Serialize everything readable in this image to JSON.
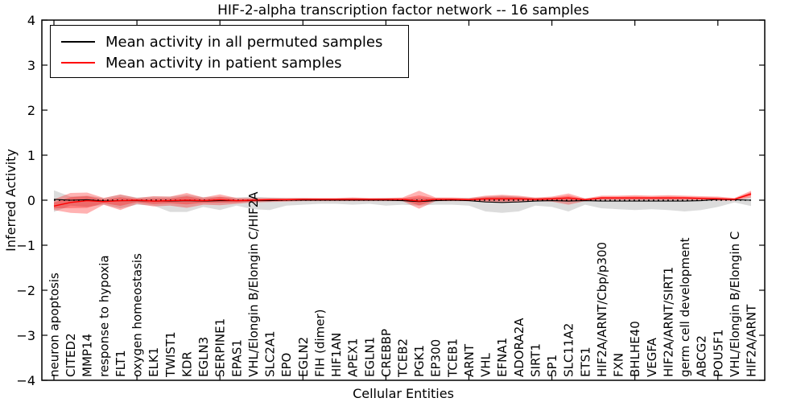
{
  "title": "HIF-2-alpha transcription factor network -- 16 samples",
  "legend": {
    "items": [
      {
        "label": "Mean activity in all permuted samples",
        "color": "#000000"
      },
      {
        "label": "Mean activity in patient samples",
        "color": "#ff0000"
      }
    ]
  },
  "colors": {
    "permuted_line": "#000000",
    "patient_line": "#ff0000",
    "permuted_band_gray": "#d9d9d9",
    "patient_band_pink": "#f4a0a0",
    "background": "#ffffff"
  },
  "chart_data": {
    "type": "line",
    "title": "HIF-2-alpha transcription factor network -- 16 samples",
    "xlabel": "Cellular Entities",
    "ylabel": "Inferred Activity",
    "ylim": [
      -4,
      4
    ],
    "grid": false,
    "legend_position": "upper left",
    "yticks": [
      "4",
      "3",
      "2",
      "1",
      "0",
      "−1",
      "−2",
      "−3",
      "−4"
    ],
    "categories": [
      "neuron apoptosis",
      "CITED2",
      "MMP14",
      "response to hypoxia",
      "FLT1",
      "oxygen homeostasis",
      "ELK1",
      "TWIST1",
      "KDR",
      "EGLN3",
      "SERPINE1",
      "EPAS1",
      "VHL/Elongin B/Elongin C/HIF2A",
      "SLC2A1",
      "EPO",
      "EGLN2",
      "FIH (dimer)",
      "HIF1AN",
      "APEX1",
      "EGLN1",
      "CREBBP",
      "TCEB2",
      "PGK1",
      "EP300",
      "TCEB1",
      "ARNT",
      "VHL",
      "EFNA1",
      "ADORA2A",
      "SIRT1",
      "SP1",
      "SLC11A2",
      "ETS1",
      "HIF2A/ARNT/Cbp/p300",
      "FXN",
      "BHLHE40",
      "VEGFA",
      "HIF2A/ARNT/SIRT1",
      "germ cell development",
      "ABCG2",
      "POU5F1",
      "VHL/Elongin B/Elongin C",
      "HIF2A/ARNT"
    ],
    "series": [
      {
        "name": "Mean activity in all permuted samples",
        "color": "#000000",
        "values": [
          0.02,
          0.0,
          0.01,
          -0.02,
          -0.01,
          -0.01,
          -0.02,
          -0.02,
          -0.01,
          -0.02,
          -0.01,
          -0.01,
          -0.01,
          -0.01,
          0.0,
          0.0,
          0.0,
          0.0,
          0.0,
          0.0,
          0.0,
          -0.01,
          -0.03,
          -0.01,
          0.0,
          -0.01,
          -0.04,
          -0.05,
          -0.04,
          -0.02,
          -0.01,
          -0.02,
          -0.01,
          -0.02,
          -0.02,
          -0.02,
          -0.02,
          -0.02,
          -0.02,
          -0.01,
          0.02,
          0.01,
          0.0
        ]
      },
      {
        "name": "Mean activity in patient samples",
        "color": "#ff0000",
        "values": [
          -0.13,
          -0.05,
          -0.01,
          -0.03,
          -0.01,
          0.0,
          -0.02,
          -0.01,
          0.0,
          -0.01,
          0.01,
          -0.01,
          0.0,
          0.01,
          0.01,
          0.02,
          0.02,
          0.02,
          0.02,
          0.02,
          0.02,
          0.02,
          -0.02,
          0.02,
          0.02,
          0.01,
          0.03,
          0.03,
          0.03,
          0.02,
          0.03,
          0.05,
          0.01,
          0.05,
          0.05,
          0.05,
          0.05,
          0.05,
          0.05,
          0.04,
          0.03,
          0.02,
          0.14
        ]
      }
    ],
    "bands": [
      {
        "name": "permuted-samples-std-band",
        "color": "#808080",
        "upper": [
          0.22,
          0.08,
          0.1,
          0.05,
          0.12,
          0.06,
          0.08,
          0.08,
          0.12,
          0.07,
          0.08,
          0.06,
          0.08,
          0.06,
          0.05,
          0.05,
          0.04,
          0.04,
          0.05,
          0.04,
          0.05,
          0.04,
          0.06,
          0.05,
          0.04,
          0.05,
          0.08,
          0.1,
          0.08,
          0.05,
          0.06,
          0.06,
          0.04,
          0.05,
          0.04,
          0.05,
          0.04,
          0.05,
          0.03,
          0.04,
          0.05,
          0.02,
          0.08
        ],
        "lower": [
          -0.26,
          -0.12,
          -0.15,
          -0.1,
          -0.18,
          -0.1,
          -0.12,
          -0.26,
          -0.26,
          -0.15,
          -0.22,
          -0.12,
          -0.2,
          -0.22,
          -0.12,
          -0.1,
          -0.08,
          -0.08,
          -0.1,
          -0.08,
          -0.12,
          -0.1,
          -0.12,
          -0.1,
          -0.1,
          -0.12,
          -0.25,
          -0.28,
          -0.25,
          -0.12,
          -0.15,
          -0.25,
          -0.1,
          -0.18,
          -0.2,
          -0.22,
          -0.2,
          -0.22,
          -0.25,
          -0.22,
          -0.15,
          -0.05,
          -0.13
        ]
      },
      {
        "name": "patient-samples-std-band",
        "color": "#ff0000",
        "upper": [
          0.02,
          0.16,
          0.17,
          0.05,
          0.13,
          0.05,
          0.09,
          0.08,
          0.16,
          0.06,
          0.13,
          0.05,
          0.05,
          0.05,
          0.05,
          0.05,
          0.05,
          0.05,
          0.06,
          0.05,
          0.05,
          0.06,
          0.21,
          0.06,
          0.06,
          0.05,
          0.1,
          0.12,
          0.1,
          0.06,
          0.08,
          0.15,
          0.04,
          0.1,
          0.1,
          0.11,
          0.1,
          0.11,
          0.1,
          0.09,
          0.08,
          0.05,
          0.21
        ],
        "lower": [
          -0.22,
          -0.28,
          -0.3,
          -0.1,
          -0.22,
          -0.08,
          -0.14,
          -0.12,
          -0.17,
          -0.1,
          -0.11,
          -0.08,
          -0.05,
          -0.04,
          -0.03,
          -0.02,
          -0.02,
          -0.02,
          -0.02,
          -0.02,
          -0.02,
          -0.02,
          -0.19,
          -0.02,
          -0.02,
          -0.02,
          -0.04,
          -0.05,
          -0.04,
          -0.02,
          -0.03,
          -0.1,
          -0.02,
          0.0,
          0.0,
          0.0,
          0.0,
          0.0,
          0.0,
          0.0,
          -0.01,
          -0.01,
          0.06
        ]
      }
    ],
    "zero_reference_line": true
  }
}
